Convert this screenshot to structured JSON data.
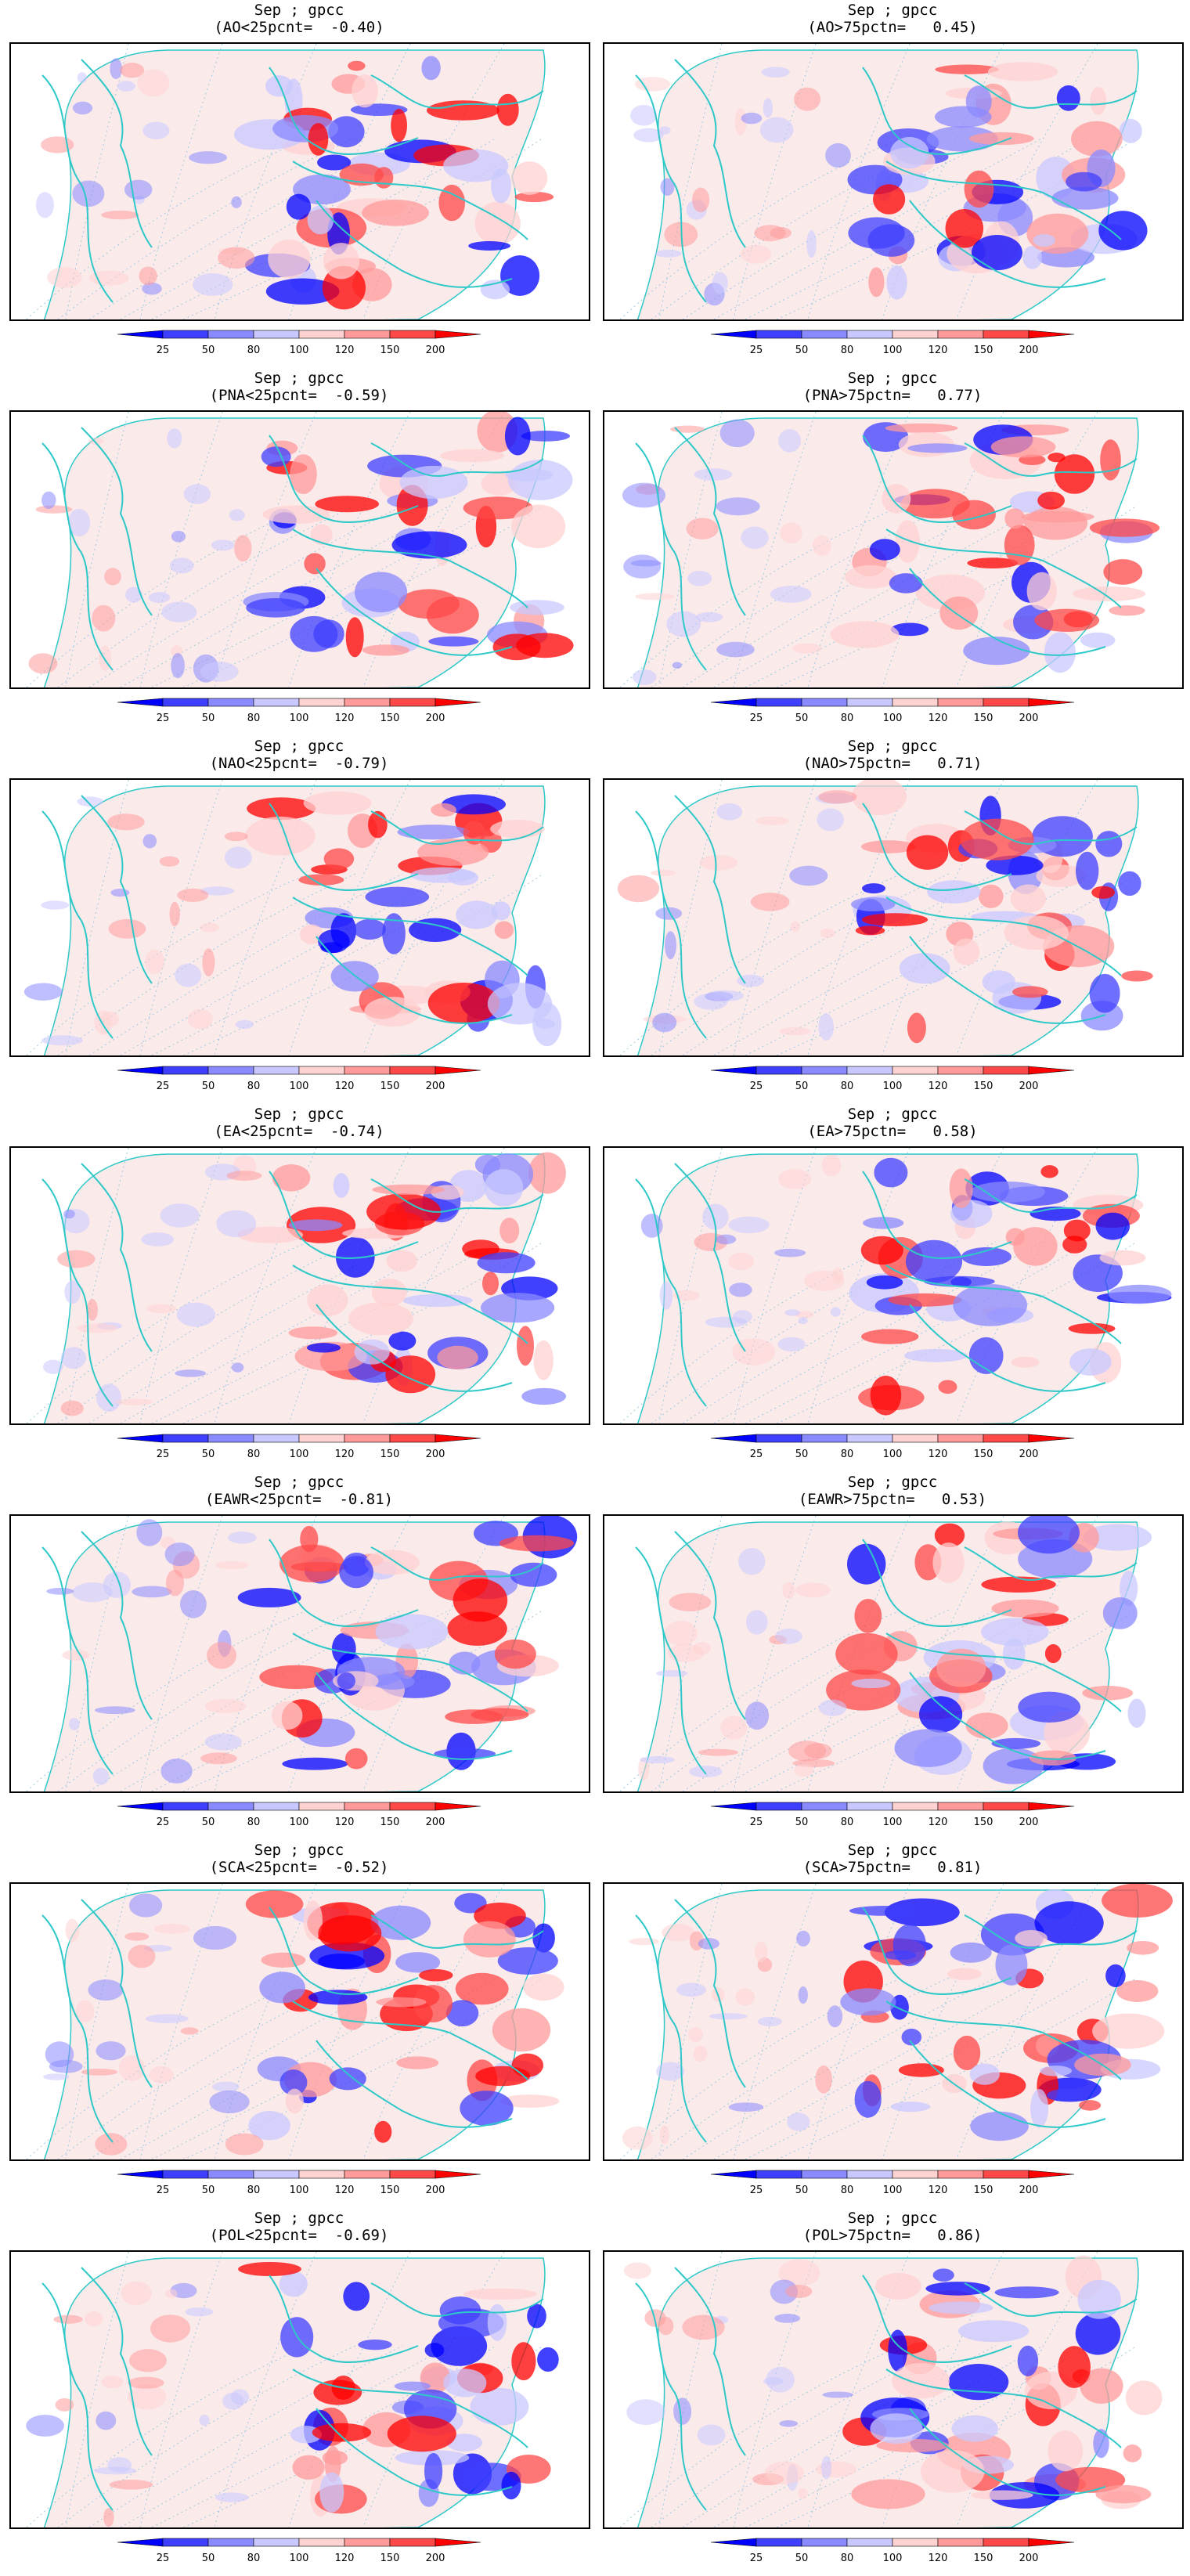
{
  "colorbar": {
    "tick_labels": [
      "25",
      "50",
      "80",
      "100",
      "120",
      "150",
      "200"
    ],
    "colors": [
      "#0000ff",
      "#3f3fff",
      "#8a8aff",
      "#c8c8ff",
      "#ffd2d2",
      "#ff9a9a",
      "#ff4848",
      "#ff0000"
    ]
  },
  "panels": [
    {
      "line1": "Sep ; gpcc",
      "line2": "(AO<25pcnt=  -0.40)"
    },
    {
      "line1": "Sep ; gpcc",
      "line2": "(AO>75pctn=   0.45)"
    },
    {
      "line1": "Sep ; gpcc",
      "line2": "(PNA<25pcnt=  -0.59)"
    },
    {
      "line1": "Sep ; gpcc",
      "line2": "(PNA>75pctn=   0.77)"
    },
    {
      "line1": "Sep ; gpcc",
      "line2": "(NAO<25pcnt=  -0.79)"
    },
    {
      "line1": "Sep ; gpcc",
      "line2": "(NAO>75pctn=   0.71)"
    },
    {
      "line1": "Sep ; gpcc",
      "line2": "(EA<25pcnt=  -0.74)"
    },
    {
      "line1": "Sep ; gpcc",
      "line2": "(EA>75pctn=   0.58)"
    },
    {
      "line1": "Sep ; gpcc",
      "line2": "(EAWR<25pcnt=  -0.81)"
    },
    {
      "line1": "Sep ; gpcc",
      "line2": "(EAWR>75pctn=   0.53)"
    },
    {
      "line1": "Sep ; gpcc",
      "line2": "(SCA<25pcnt=  -0.52)"
    },
    {
      "line1": "Sep ; gpcc",
      "line2": "(SCA>75pctn=   0.81)"
    },
    {
      "line1": "Sep ; gpcc",
      "line2": "(POL<25pcnt=  -0.69)"
    },
    {
      "line1": "Sep ; gpcc",
      "line2": "(POL>75pctn=   0.86)"
    }
  ],
  "map_style": {
    "coast_color": "#2ec8c8",
    "graticule_color": "#9fc9e0",
    "border_color": "#000000"
  }
}
